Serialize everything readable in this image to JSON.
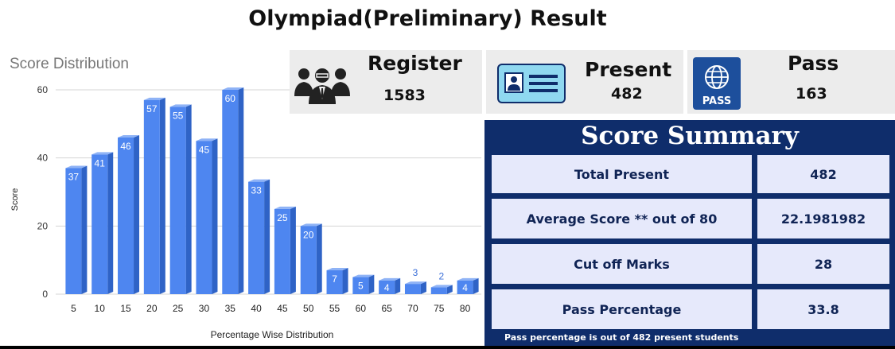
{
  "title": "Olympiad(Preliminary) Result",
  "chart_heading": "Score Distribution",
  "cards": {
    "register": {
      "label": "Register",
      "value": "1583",
      "icon": "group-icon"
    },
    "present": {
      "label": "Present",
      "value": "482",
      "icon": "id-card-icon"
    },
    "pass": {
      "label": "Pass",
      "value": "163",
      "icon": "passport-icon"
    }
  },
  "summary": {
    "title": "Score Summary",
    "rows": [
      {
        "label": "Total Present",
        "value": "482"
      },
      {
        "label": "Average Score ** out of  80",
        "value": "22.1981982"
      },
      {
        "label": "Cut off Marks",
        "value": "28"
      },
      {
        "label": "Pass Percentage",
        "value": "33.8"
      }
    ],
    "note": "Pass percentage is out of 482 present students"
  },
  "colors": {
    "bar": "#4e86f0",
    "bar_top": "#8fb3f6",
    "bar_side": "#2f63c6",
    "summary_bg": "#0f2d6b",
    "cell_bg": "#e6e9fb"
  },
  "chart_data": {
    "type": "bar",
    "title": "Score Distribution",
    "xlabel": "Percentage Wise Distribution",
    "ylabel": "Score",
    "categories": [
      "5",
      "10",
      "15",
      "20",
      "25",
      "30",
      "35",
      "40",
      "45",
      "50",
      "55",
      "60",
      "65",
      "70",
      "75",
      "80"
    ],
    "values": [
      37,
      41,
      46,
      57,
      55,
      45,
      60,
      33,
      25,
      20,
      7,
      5,
      4,
      3,
      2,
      4
    ],
    "ylim": [
      0,
      60
    ],
    "yticks": [
      0,
      20,
      40,
      60
    ],
    "grid": true,
    "legend": "none"
  }
}
